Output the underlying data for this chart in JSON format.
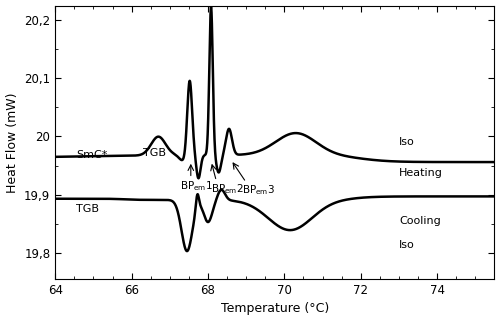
{
  "xlabel": "Temperature (°C)",
  "ylabel": "Heat Flow (mW)",
  "xlim": [
    64,
    75.5
  ],
  "ylim": [
    19.755,
    20.225
  ],
  "yticks": [
    19.8,
    19.9,
    20.0,
    20.1,
    20.2
  ],
  "ytick_labels": [
    "19,8",
    "19,9",
    "20",
    "20,1",
    "20,2"
  ],
  "xticks": [
    64,
    66,
    68,
    70,
    72,
    74
  ],
  "xtick_labels": [
    "64",
    "66",
    "68",
    "70",
    "72",
    "74"
  ],
  "line_color": "#000000",
  "bg_color": "#ffffff",
  "heating_base": 19.965,
  "cooling_base": 19.893
}
